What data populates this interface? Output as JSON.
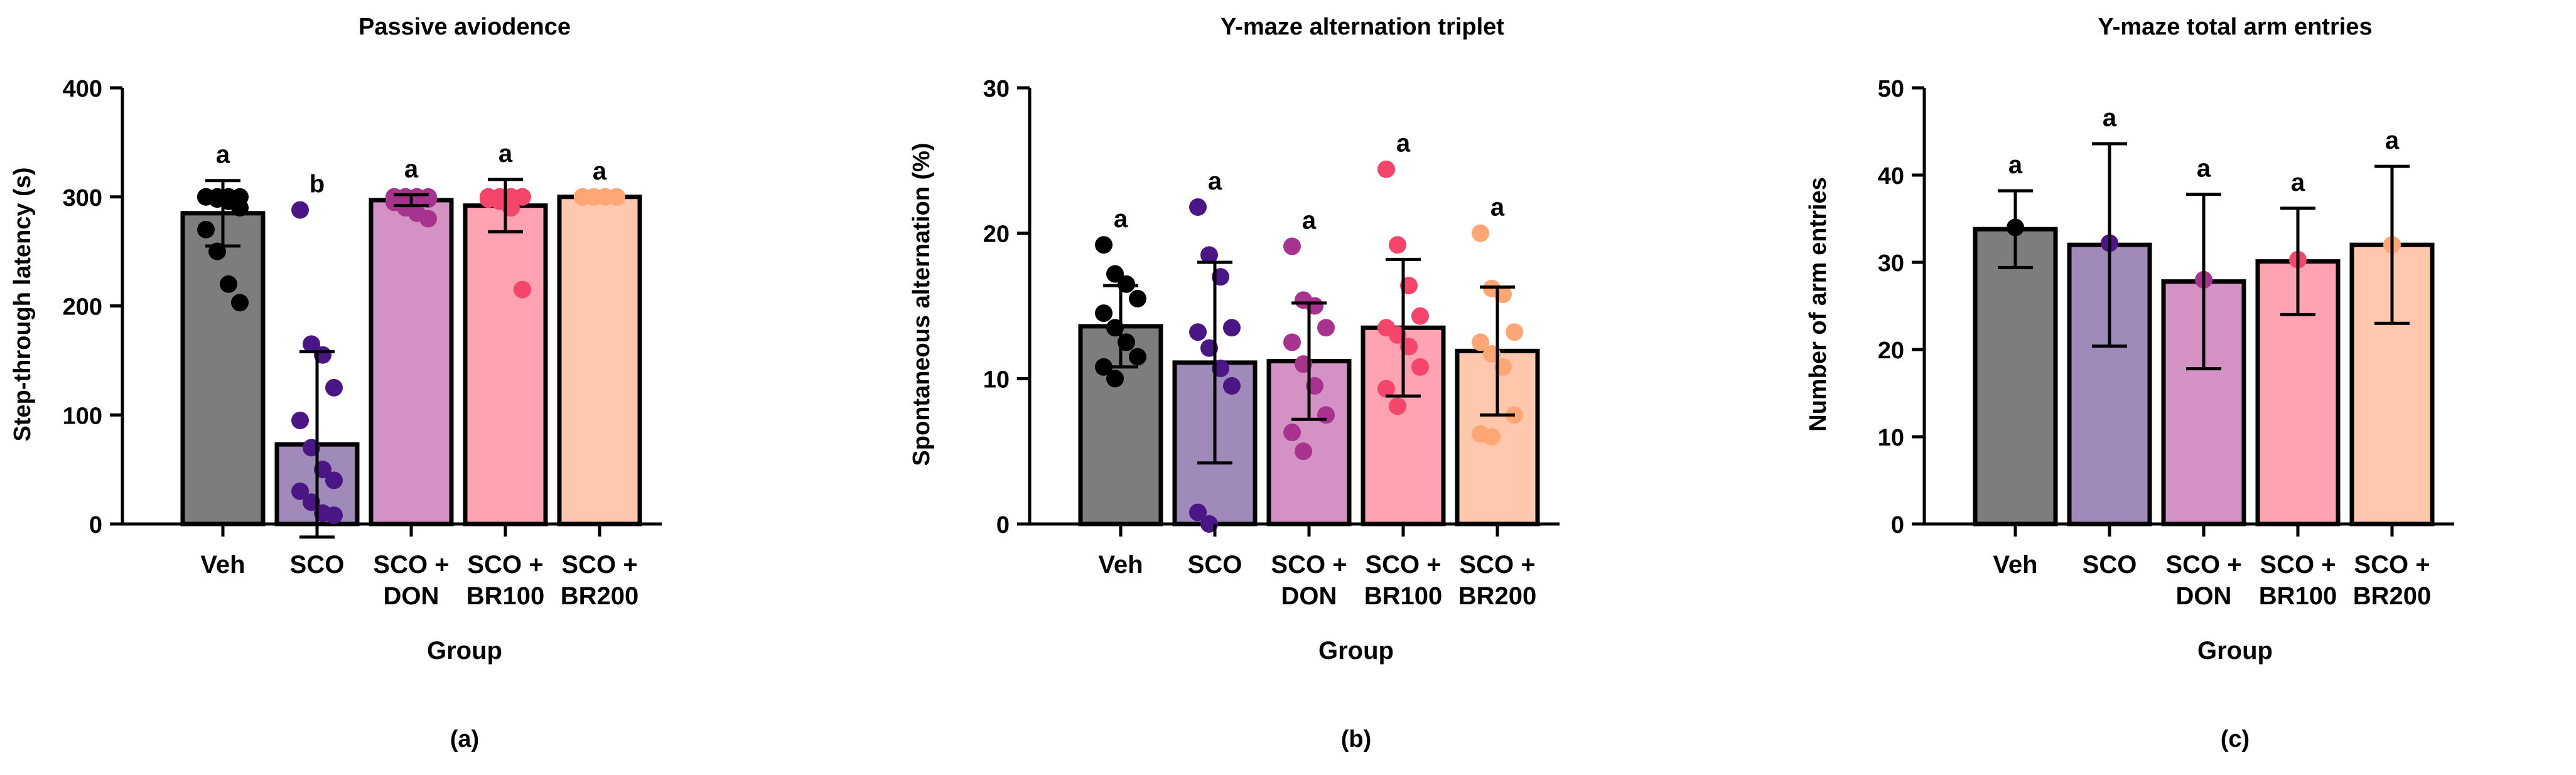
{
  "colors": {
    "Veh": "#7d7d7d",
    "SCO": "#a08ab9",
    "SCO + DON": "#d392c3",
    "SCO + BR100": "#ffa3b3",
    "SCO + BR200": "#ffc8ad",
    "dots": [
      "#000000",
      "#4a1585",
      "#a8338e",
      "#f5456b",
      "#ffa774"
    ]
  },
  "chart_data": [
    {
      "type": "bar",
      "panel": "(a)",
      "title": "Passive aviodence",
      "xlabel": "Group",
      "ylabel": "Step-through latency (s)",
      "ylim": [
        0,
        400
      ],
      "yticks": [
        0,
        100,
        200,
        300,
        400
      ],
      "categories": [
        [
          "Veh"
        ],
        [
          "SCO"
        ],
        [
          "SCO +",
          "DON"
        ],
        [
          "SCO +",
          "BR100"
        ],
        [
          "SCO +",
          "BR200"
        ]
      ],
      "values": [
        285,
        73,
        297,
        292,
        300
      ],
      "sd": [
        30,
        85,
        5,
        24,
        0
      ],
      "letters": [
        "a",
        "b",
        "a",
        "a",
        "a"
      ],
      "points": [
        [
          300,
          300,
          300,
          300,
          300,
          298,
          296,
          290,
          270,
          250,
          220,
          203
        ],
        [
          288,
          165,
          155,
          125,
          95,
          70,
          50,
          40,
          30,
          20,
          10,
          8
        ],
        [
          300,
          300,
          300,
          300,
          300,
          300,
          300,
          298,
          295,
          290,
          285,
          280
        ],
        [
          300,
          300,
          300,
          300,
          300,
          300,
          300,
          300,
          298,
          296,
          290,
          215
        ],
        [
          300,
          300,
          300,
          300,
          300,
          300,
          300,
          300,
          300,
          300,
          300,
          300
        ]
      ]
    },
    {
      "type": "bar",
      "panel": "(b)",
      "title": "Y-maze alternation triplet",
      "xlabel": "Group",
      "ylabel": "Spontaneous alternation (%)",
      "ylim": [
        0,
        30
      ],
      "yticks": [
        0,
        10,
        20,
        30
      ],
      "categories": [
        [
          "Veh"
        ],
        [
          "SCO"
        ],
        [
          "SCO +",
          "DON"
        ],
        [
          "SCO +",
          "BR100"
        ],
        [
          "SCO +",
          "BR200"
        ]
      ],
      "values": [
        13.6,
        11.1,
        11.2,
        13.5,
        11.9
      ],
      "sd": [
        2.8,
        6.9,
        4.0,
        4.7,
        4.4
      ],
      "letters": [
        "a",
        "a",
        "a",
        "a",
        "a"
      ],
      "points": [
        [
          19.2,
          17.2,
          16.5,
          15.5,
          14.5,
          13.5,
          12.5,
          11.5,
          10.8,
          10.0
        ],
        [
          21.8,
          18.5,
          17.0,
          13.5,
          13.2,
          12.1,
          10.7,
          9.5,
          0.8,
          0.0
        ],
        [
          19.1,
          15.4,
          15.0,
          13.5,
          12.5,
          11.0,
          9.5,
          7.5,
          6.3,
          5.0
        ],
        [
          24.4,
          19.2,
          16.4,
          14.3,
          13.5,
          13.0,
          12.2,
          10.8,
          9.3,
          8.1
        ],
        [
          20.0,
          16.2,
          15.8,
          13.2,
          12.5,
          11.7,
          10.8,
          7.5,
          6.2,
          6.0
        ]
      ]
    },
    {
      "type": "bar",
      "panel": "(c)",
      "title": "Y-maze total arm entries",
      "xlabel": "Group",
      "ylabel": "Number of arm entries",
      "ylim": [
        0,
        50
      ],
      "yticks": [
        0,
        10,
        20,
        30,
        40,
        50
      ],
      "categories": [
        [
          "Veh"
        ],
        [
          "SCO"
        ],
        [
          "SCO +",
          "DON"
        ],
        [
          "SCO +",
          "BR100"
        ],
        [
          "SCO +",
          "BR200"
        ]
      ],
      "values": [
        33.8,
        32.0,
        27.8,
        30.1,
        32.0
      ],
      "sd": [
        4.4,
        11.6,
        10.0,
        6.1,
        9.0
      ],
      "letters": [
        "a",
        "a",
        "a",
        "a",
        "a"
      ],
      "points": [
        [
          34.0
        ],
        [
          32.2
        ],
        [
          28.0
        ],
        [
          30.3
        ],
        [
          32.0
        ]
      ]
    }
  ]
}
